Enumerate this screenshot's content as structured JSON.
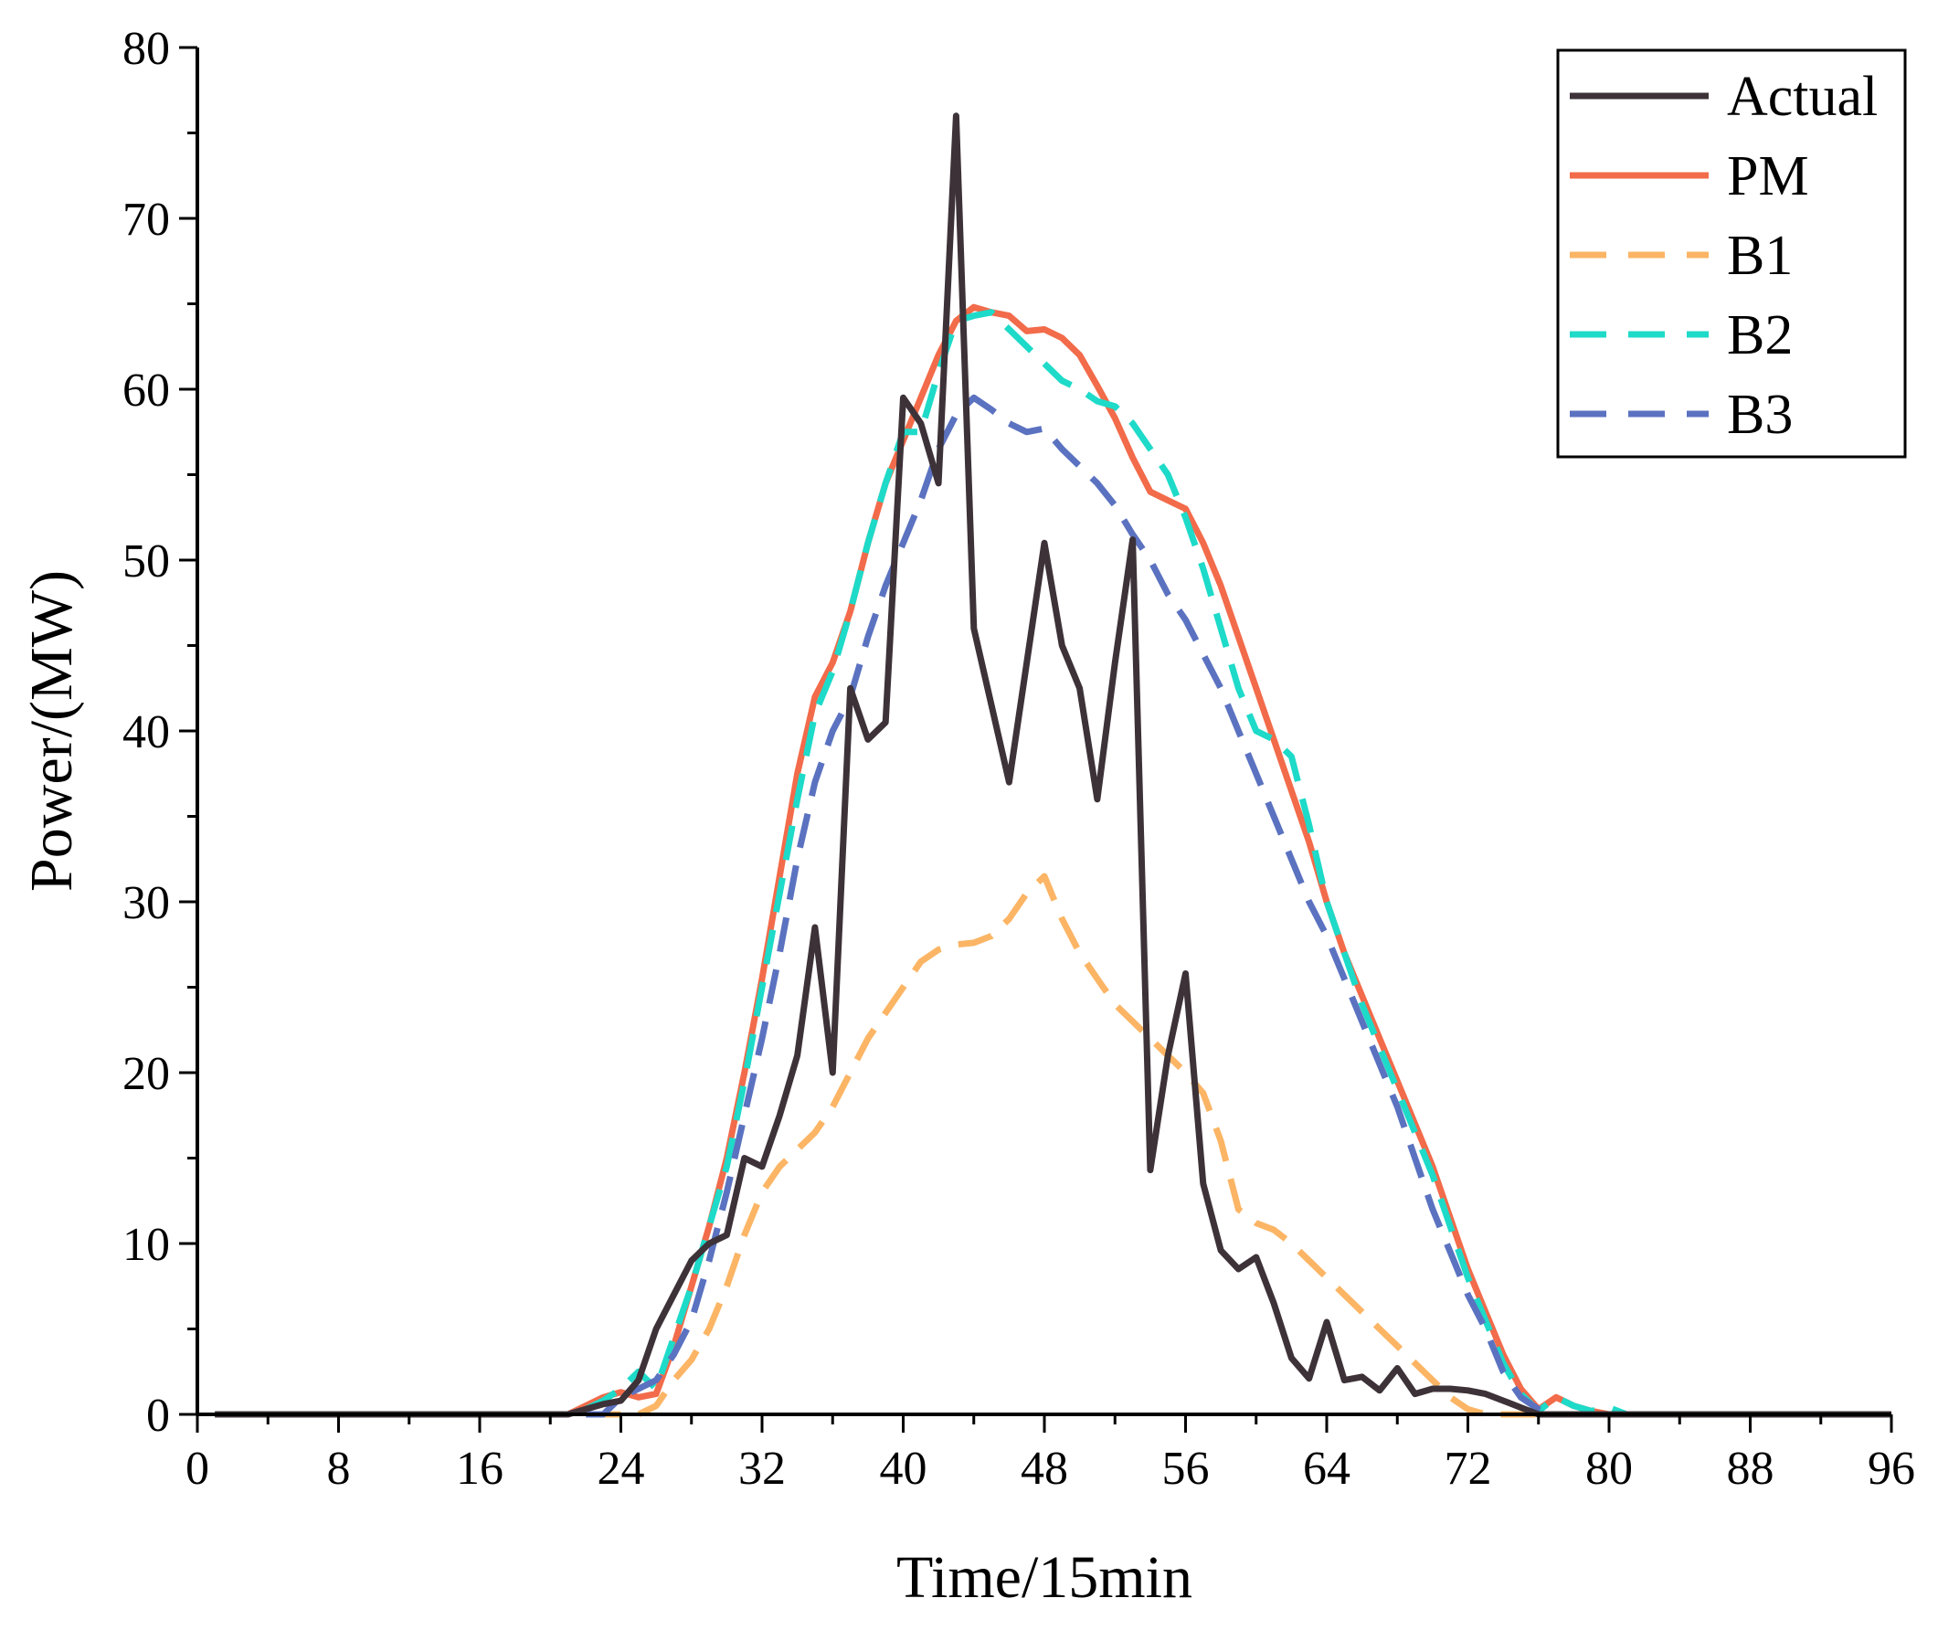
{
  "chart_data": {
    "type": "line",
    "title": "",
    "xlabel": "Time/15min",
    "ylabel": "Power/(MW)",
    "xlim": [
      0,
      96
    ],
    "ylim": [
      0,
      80
    ],
    "xticks": [
      0,
      8,
      16,
      24,
      32,
      40,
      48,
      56,
      64,
      72,
      80,
      88,
      96
    ],
    "yticks": [
      0,
      10,
      20,
      30,
      40,
      50,
      60,
      70,
      80
    ],
    "grid": false,
    "legend_position": "top-right",
    "series": [
      {
        "name": "Actual",
        "color": "#3d3238",
        "dash": "solid",
        "points": [
          [
            1,
            0
          ],
          [
            21,
            0
          ],
          [
            22,
            0.3
          ],
          [
            23,
            0.6
          ],
          [
            24,
            0.8
          ],
          [
            25,
            2
          ],
          [
            26,
            5
          ],
          [
            27,
            7
          ],
          [
            28,
            9
          ],
          [
            29,
            10
          ],
          [
            30,
            10.5
          ],
          [
            31,
            15
          ],
          [
            32,
            14.5
          ],
          [
            33,
            17.5
          ],
          [
            34,
            21
          ],
          [
            35,
            28.5
          ],
          [
            36,
            20
          ],
          [
            37,
            42.5
          ],
          [
            38,
            39.5
          ],
          [
            39,
            40.5
          ],
          [
            40,
            59.5
          ],
          [
            41,
            58
          ],
          [
            42,
            54.5
          ],
          [
            43,
            76
          ],
          [
            44,
            46
          ],
          [
            45,
            41.5
          ],
          [
            46,
            37
          ],
          [
            47,
            44
          ],
          [
            48,
            51
          ],
          [
            49,
            45
          ],
          [
            50,
            42.5
          ],
          [
            51,
            36
          ],
          [
            52,
            44
          ],
          [
            53,
            51.2
          ],
          [
            54,
            14.3
          ],
          [
            55,
            21
          ],
          [
            56,
            25.8
          ],
          [
            57,
            13.5
          ],
          [
            58,
            9.6
          ],
          [
            59,
            8.5
          ],
          [
            60,
            9.2
          ],
          [
            61,
            6.5
          ],
          [
            62,
            3.3
          ],
          [
            63,
            2.1
          ],
          [
            64,
            5.4
          ],
          [
            65,
            2
          ],
          [
            66,
            2.2
          ],
          [
            67,
            1.4
          ],
          [
            68,
            2.7
          ],
          [
            69,
            1.2
          ],
          [
            70,
            1.5
          ],
          [
            71,
            1.5
          ],
          [
            72,
            1.4
          ],
          [
            73,
            1.2
          ],
          [
            74,
            0.8
          ],
          [
            75,
            0.4
          ],
          [
            76,
            0
          ],
          [
            96,
            0
          ]
        ]
      },
      {
        "name": "PM",
        "color": "#f26b4a",
        "dash": "solid",
        "points": [
          [
            1,
            0
          ],
          [
            21,
            0
          ],
          [
            22,
            0.5
          ],
          [
            23,
            1
          ],
          [
            24,
            1.3
          ],
          [
            25,
            1
          ],
          [
            26,
            1.2
          ],
          [
            27,
            4
          ],
          [
            28,
            7.5
          ],
          [
            29,
            11
          ],
          [
            30,
            15
          ],
          [
            31,
            20
          ],
          [
            32,
            25.5
          ],
          [
            33,
            31.5
          ],
          [
            34,
            37.5
          ],
          [
            35,
            42
          ],
          [
            36,
            44
          ],
          [
            37,
            47
          ],
          [
            38,
            51
          ],
          [
            39,
            54.5
          ],
          [
            40,
            57
          ],
          [
            41,
            59.5
          ],
          [
            42,
            62
          ],
          [
            43,
            64
          ],
          [
            44,
            64.8
          ],
          [
            45,
            64.5
          ],
          [
            46,
            64.3
          ],
          [
            47,
            63.4
          ],
          [
            48,
            63.5
          ],
          [
            49,
            63
          ],
          [
            50,
            62
          ],
          [
            51,
            60.2
          ],
          [
            52,
            58.3
          ],
          [
            53,
            56
          ],
          [
            54,
            54
          ],
          [
            55,
            53.5
          ],
          [
            56,
            53
          ],
          [
            57,
            51
          ],
          [
            58,
            48.5
          ],
          [
            59,
            45.5
          ],
          [
            60,
            42.5
          ],
          [
            61,
            39.5
          ],
          [
            62,
            36.5
          ],
          [
            63,
            33.5
          ],
          [
            64,
            30
          ],
          [
            65,
            27
          ],
          [
            66,
            24.5
          ],
          [
            67,
            22
          ],
          [
            68,
            19.5
          ],
          [
            69,
            17
          ],
          [
            70,
            14.5
          ],
          [
            71,
            11.5
          ],
          [
            72,
            8.5
          ],
          [
            73,
            6
          ],
          [
            74,
            3.5
          ],
          [
            75,
            1.5
          ],
          [
            76,
            0.3
          ],
          [
            77,
            1
          ],
          [
            78,
            0.5
          ],
          [
            79,
            0.2
          ],
          [
            80,
            0
          ],
          [
            96,
            0
          ]
        ]
      },
      {
        "name": "B1",
        "color": "#fbb565",
        "dash": "dashed",
        "points": [
          [
            1,
            0
          ],
          [
            25,
            0
          ],
          [
            26,
            0.5
          ],
          [
            27,
            2
          ],
          [
            28,
            3.2
          ],
          [
            29,
            5
          ],
          [
            30,
            7.5
          ],
          [
            31,
            10.5
          ],
          [
            32,
            13
          ],
          [
            33,
            14.5
          ],
          [
            34,
            15.5
          ],
          [
            35,
            16.5
          ],
          [
            36,
            18
          ],
          [
            37,
            20
          ],
          [
            38,
            22
          ],
          [
            39,
            23.5
          ],
          [
            40,
            25
          ],
          [
            41,
            26.5
          ],
          [
            42,
            27.2
          ],
          [
            43,
            27.5
          ],
          [
            44,
            27.6
          ],
          [
            45,
            28
          ],
          [
            46,
            29
          ],
          [
            47,
            30.5
          ],
          [
            48,
            31.5
          ],
          [
            49,
            29
          ],
          [
            50,
            27
          ],
          [
            51,
            25.5
          ],
          [
            52,
            24
          ],
          [
            53,
            23
          ],
          [
            54,
            22
          ],
          [
            55,
            21
          ],
          [
            56,
            20
          ],
          [
            57,
            18.8
          ],
          [
            58,
            16
          ],
          [
            59,
            12
          ],
          [
            60,
            11.2
          ],
          [
            61,
            10.8
          ],
          [
            62,
            10
          ],
          [
            63,
            9
          ],
          [
            64,
            8
          ],
          [
            65,
            7
          ],
          [
            66,
            6
          ],
          [
            67,
            5
          ],
          [
            68,
            4
          ],
          [
            69,
            3
          ],
          [
            70,
            2
          ],
          [
            71,
            1
          ],
          [
            72,
            0.3
          ],
          [
            73,
            0
          ],
          [
            96,
            0
          ]
        ]
      },
      {
        "name": "B2",
        "color": "#1edac8",
        "dash": "dashed",
        "points": [
          [
            1,
            0
          ],
          [
            21,
            0
          ],
          [
            22,
            0.3
          ],
          [
            23,
            0.8
          ],
          [
            24,
            1.5
          ],
          [
            25,
            2.5
          ],
          [
            26,
            1.5
          ],
          [
            27,
            4.5
          ],
          [
            28,
            7.5
          ],
          [
            29,
            11
          ],
          [
            30,
            14.5
          ],
          [
            31,
            19.5
          ],
          [
            32,
            25
          ],
          [
            33,
            30.5
          ],
          [
            34,
            36
          ],
          [
            35,
            41
          ],
          [
            36,
            43.5
          ],
          [
            37,
            47
          ],
          [
            38,
            51
          ],
          [
            39,
            54.5
          ],
          [
            40,
            57.5
          ],
          [
            41,
            57.5
          ],
          [
            42,
            61
          ],
          [
            43,
            64
          ],
          [
            44,
            64.3
          ],
          [
            45,
            64.5
          ],
          [
            46,
            63.5
          ],
          [
            47,
            62.5
          ],
          [
            48,
            61.5
          ],
          [
            49,
            60.5
          ],
          [
            50,
            60
          ],
          [
            51,
            59.3
          ],
          [
            52,
            59
          ],
          [
            53,
            58
          ],
          [
            54,
            56.5
          ],
          [
            55,
            55
          ],
          [
            56,
            52.5
          ],
          [
            57,
            49.5
          ],
          [
            58,
            46
          ],
          [
            59,
            42.5
          ],
          [
            60,
            40
          ],
          [
            61,
            39.5
          ],
          [
            62,
            38.5
          ],
          [
            63,
            34.5
          ],
          [
            64,
            30
          ],
          [
            65,
            27
          ],
          [
            66,
            24
          ],
          [
            67,
            21.5
          ],
          [
            68,
            19
          ],
          [
            69,
            16.5
          ],
          [
            70,
            14
          ],
          [
            71,
            11
          ],
          [
            72,
            8
          ],
          [
            73,
            5.5
          ],
          [
            74,
            3
          ],
          [
            75,
            1.2
          ],
          [
            76,
            0.2
          ],
          [
            77,
            1
          ],
          [
            78,
            0.5
          ],
          [
            79,
            0.2
          ],
          [
            80,
            0.4
          ],
          [
            81,
            0
          ],
          [
            96,
            0
          ]
        ]
      },
      {
        "name": "B3",
        "color": "#5b72c0",
        "dash": "dashed",
        "points": [
          [
            1,
            0
          ],
          [
            23,
            0
          ],
          [
            24,
            1
          ],
          [
            25,
            1.5
          ],
          [
            26,
            2
          ],
          [
            27,
            3.5
          ],
          [
            28,
            5.5
          ],
          [
            29,
            9
          ],
          [
            30,
            13
          ],
          [
            31,
            17.5
          ],
          [
            32,
            22
          ],
          [
            33,
            27
          ],
          [
            34,
            32.5
          ],
          [
            35,
            37
          ],
          [
            36,
            40
          ],
          [
            37,
            42
          ],
          [
            38,
            45.5
          ],
          [
            39,
            48.5
          ],
          [
            40,
            51
          ],
          [
            41,
            53.5
          ],
          [
            42,
            56.5
          ],
          [
            43,
            58.5
          ],
          [
            44,
            59.5
          ],
          [
            45,
            58.8
          ],
          [
            46,
            58
          ],
          [
            47,
            57.5
          ],
          [
            48,
            57.7
          ],
          [
            49,
            56.5
          ],
          [
            50,
            55.5
          ],
          [
            51,
            54.5
          ],
          [
            52,
            53.2
          ],
          [
            53,
            51.5
          ],
          [
            54,
            50
          ],
          [
            55,
            48
          ],
          [
            56,
            46.5
          ],
          [
            57,
            44.5
          ],
          [
            58,
            42.5
          ],
          [
            59,
            40
          ],
          [
            60,
            37.5
          ],
          [
            61,
            35
          ],
          [
            62,
            32.5
          ],
          [
            63,
            30
          ],
          [
            64,
            28
          ],
          [
            65,
            25.5
          ],
          [
            66,
            23
          ],
          [
            67,
            20.5
          ],
          [
            68,
            18
          ],
          [
            69,
            15
          ],
          [
            70,
            12
          ],
          [
            71,
            9.5
          ],
          [
            72,
            7
          ],
          [
            73,
            5
          ],
          [
            74,
            2.5
          ],
          [
            75,
            1
          ],
          [
            76,
            0.3
          ],
          [
            77,
            0
          ],
          [
            96,
            0
          ]
        ]
      }
    ]
  }
}
